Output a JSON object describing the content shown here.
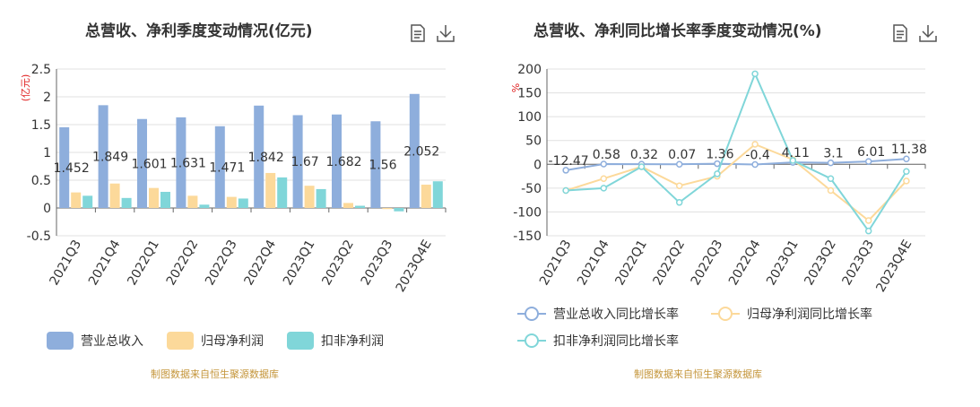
{
  "left": {
    "title": "总营收、净利季度变动情况(亿元)",
    "unit": "(亿元)",
    "source": "制图数据来自恒生聚源数据库",
    "icons": [
      "document-icon",
      "download-icon"
    ]
  },
  "right": {
    "title": "总营收、净利同比增长率季度变动情况(%)",
    "unit": "%",
    "source": "制图数据来自恒生聚源数据库",
    "icons": [
      "document-icon",
      "download-icon"
    ]
  },
  "chart_data": [
    {
      "type": "bar",
      "title": "总营收、净利季度变动情况(亿元)",
      "ylabel": "(亿元)",
      "ylim": [
        -0.5,
        2.5
      ],
      "yticks": [
        "-0.5",
        "0",
        "0.5",
        "1",
        "1.5",
        "2",
        "2.5"
      ],
      "categories": [
        "2021Q3",
        "2021Q4",
        "2022Q1",
        "2022Q2",
        "2022Q3",
        "2022Q4",
        "2023Q1",
        "2023Q2",
        "2023Q3",
        "2023Q4E"
      ],
      "series": [
        {
          "name": "营业总收入",
          "color": "#8eaedc",
          "values": [
            1.452,
            1.849,
            1.601,
            1.631,
            1.471,
            1.842,
            1.67,
            1.682,
            1.56,
            2.052
          ],
          "labels": [
            "1.452",
            "1.849",
            "1.601",
            "1.631",
            "1.471",
            "1.842",
            "1.67",
            "1.682",
            "1.56",
            "2.052"
          ]
        },
        {
          "name": "归母净利润",
          "color": "#fcd99a",
          "values": [
            0.28,
            0.44,
            0.36,
            0.22,
            0.2,
            0.63,
            0.4,
            0.09,
            -0.02,
            0.42
          ]
        },
        {
          "name": "扣非净利润",
          "color": "#80d6d9",
          "values": [
            0.22,
            0.18,
            0.29,
            0.06,
            0.17,
            0.55,
            0.34,
            0.04,
            -0.06,
            0.48
          ]
        }
      ],
      "legend_position": "bottom",
      "grid": true
    },
    {
      "type": "line",
      "title": "总营收、净利同比增长率季度变动情况(%)",
      "ylabel": "%",
      "ylim": [
        -150,
        200
      ],
      "yticks": [
        "-150",
        "-100",
        "-50",
        "0",
        "50",
        "100",
        "150",
        "200"
      ],
      "categories": [
        "2021Q3",
        "2021Q4",
        "2022Q1",
        "2022Q2",
        "2022Q3",
        "2022Q4",
        "2023Q1",
        "2023Q2",
        "2023Q3",
        "2023Q4E"
      ],
      "series": [
        {
          "name": "营业总收入同比增长率",
          "color": "#8eaedc",
          "values": [
            -12.47,
            0.58,
            0.32,
            0.07,
            1.36,
            -0.4,
            4.11,
            3.1,
            6.01,
            11.38
          ],
          "labels": [
            "-12.47",
            "0.58",
            "0.32",
            "0.07",
            "1.36",
            "-0.4",
            "4.11",
            "3.1",
            "6.01",
            "11.38"
          ]
        },
        {
          "name": "归母净利润同比增长率",
          "color": "#fcd99a",
          "values": [
            -55,
            -30,
            -5,
            -45,
            -25,
            42,
            10,
            -55,
            -118,
            -35
          ]
        },
        {
          "name": "扣非净利润同比增长率",
          "color": "#80d6d9",
          "values": [
            -55,
            -50,
            -5,
            -80,
            -20,
            190,
            8,
            -30,
            -140,
            -15
          ]
        }
      ],
      "legend_position": "bottom",
      "grid": true
    }
  ]
}
